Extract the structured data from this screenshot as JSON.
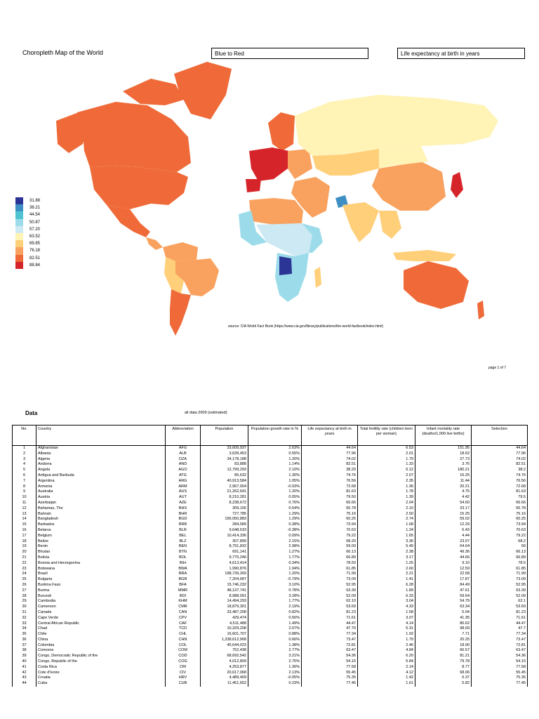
{
  "header": {
    "title": "Choropleth Map of the World",
    "scheme": "Blue to Red",
    "variable": "Life expectancy at birth in years"
  },
  "legend": {
    "labels": [
      "31.88",
      "38.21",
      "44.54",
      "50.87",
      "57.20",
      "63.52",
      "69.85",
      "76.18",
      "82.51",
      "88.84"
    ],
    "colors": [
      "#2b3596",
      "#3e8fc4",
      "#4fc4d0",
      "#9cdcea",
      "#cde9f4",
      "#fff3b6",
      "#ffcf7a",
      "#f9a15e",
      "#ef6a38",
      "#d6252a"
    ]
  },
  "source": "source:  CIA World Fact Book (https://www.cia.gov/library/publications/the-world-factbook/index.html)",
  "page_number": "page 1 of 7",
  "data_section": {
    "heading": "Data",
    "note": "all data 2009 (estimated)",
    "columns": [
      "No.",
      "Country",
      "Abbreviation",
      "Population",
      "Population growth rate in %",
      "Life expectancy at birth in years",
      "Total fertility rate (children born per woman)",
      "Infant mortality rate (deaths/1,000 live births)",
      "Selection"
    ],
    "rows": [
      [
        "1",
        "Afghanistan",
        "AFG",
        "33,609,937",
        "2.63%",
        "44.64",
        "6.53",
        "151.95",
        "44.64"
      ],
      [
        "2",
        "Albania",
        "ALB",
        "3,639,453",
        "0.55%",
        "77.96",
        "2.01",
        "18.62",
        "77.96"
      ],
      [
        "3",
        "Algeria",
        "DZA",
        "34,178,188",
        "1.20%",
        "74.02",
        "1.79",
        "27.73",
        "74.02"
      ],
      [
        "4",
        "Andorra",
        "AND",
        "83,888",
        "1.14%",
        "82.51",
        "1.33",
        "3.76",
        "82.51"
      ],
      [
        "5",
        "Angola",
        "AGO",
        "12,799,293",
        "2.10%",
        "38.20",
        "6.12",
        "180.21",
        "38.2"
      ],
      [
        "6",
        "Antigua and Barbuda",
        "ATG",
        "85,632",
        "1.30%",
        "74.76",
        "2.07",
        "16.25",
        "74.76"
      ],
      [
        "7",
        "Argentina",
        "ARG",
        "40,913,584",
        "1.05%",
        "76.56",
        "2.35",
        "11.44",
        "76.56"
      ],
      [
        "8",
        "Armenia",
        "ARM",
        "2,967,004",
        "-0.03%",
        "72.68",
        "1.36",
        "20.21",
        "72.68"
      ],
      [
        "9",
        "Australia",
        "AUS",
        "21,262,641",
        "1.20%",
        "81.63",
        "1.78",
        "4.75",
        "81.63"
      ],
      [
        "10",
        "Austria",
        "AUT",
        "8,210,281",
        "0.05%",
        "79.50",
        "1.39",
        "4.42",
        "79.5"
      ],
      [
        "11",
        "Azerbaijan",
        "AZE",
        "8,238,672",
        "0.76%",
        "66.66",
        "2.04",
        "54.60",
        "66.66"
      ],
      [
        "12",
        "Bahamas, The",
        "BHS",
        "309,156",
        "0.54%",
        "65.78",
        "2.10",
        "23.17",
        "65.78"
      ],
      [
        "13",
        "Bahrain",
        "BHR",
        "727,785",
        "1.29%",
        "75.16",
        "2.50",
        "15.25",
        "75.16"
      ],
      [
        "14",
        "Bangladesh",
        "BGD",
        "156,050,883",
        "1.29%",
        "60.25",
        "2.74",
        "59.02",
        "60.25"
      ],
      [
        "15",
        "Barbados",
        "BRB",
        "284,589",
        "0.38%",
        "73.94",
        "1.68",
        "12.29",
        "73.94"
      ],
      [
        "16",
        "Belarus",
        "BLR",
        "9,648,533",
        "-0.38%",
        "70.63",
        "1.24",
        "6.43",
        "70.63"
      ],
      [
        "17",
        "Belgium",
        "BEL",
        "10,414,336",
        "0.09%",
        "79.22",
        "1.65",
        "4.44",
        "79.22"
      ],
      [
        "18",
        "Belize",
        "BLZ",
        "307,899",
        "2.15%",
        "68.20",
        "3.36",
        "23.07",
        "68.2"
      ],
      [
        "19",
        "Benin",
        "BEN",
        "8,791,832",
        "2.98%",
        "59.00",
        "5.49",
        "64.64",
        "59"
      ],
      [
        "20",
        "Bhutan",
        "BTN",
        "691,141",
        "1.27%",
        "66.13",
        "2.38",
        "49.36",
        "66.13"
      ],
      [
        "21",
        "Bolivia",
        "BOL",
        "9,775,246",
        "1.77%",
        "66.89",
        "3.17",
        "44.66",
        "66.89"
      ],
      [
        "22",
        "Bosnia and Herzegovina",
        "BIH",
        "4,613,414",
        "0.34%",
        "78.50",
        "1.25",
        "9.10",
        "78.5"
      ],
      [
        "23",
        "Botswana",
        "BWA",
        "1,990,876",
        "1.94%",
        "61.85",
        "2.60",
        "12.59",
        "61.85"
      ],
      [
        "24",
        "Brazil",
        "BRA",
        "198,739,269",
        "1.20%",
        "71.99",
        "2.21",
        "22.58",
        "71.99"
      ],
      [
        "25",
        "Bulgaria",
        "BGR",
        "7,204,687",
        "-0.79%",
        "73.09",
        "1.41",
        "17.87",
        "73.09"
      ],
      [
        "26",
        "Burkina Faso",
        "BFA",
        "15,746,232",
        "3.10%",
        "52.95",
        "6.28",
        "84.49",
        "52.95"
      ],
      [
        "27",
        "Burma",
        "MMR",
        "48,137,741",
        "0.78%",
        "63.39",
        "1.89",
        "47.61",
        "63.39"
      ],
      [
        "28",
        "Burundi",
        "BDI",
        "8,988,091",
        "3.28%",
        "52.09",
        "6.33",
        "59.64",
        "52.09"
      ],
      [
        "29",
        "Cambodia",
        "KHM",
        "14,494,293",
        "1.77%",
        "62.10",
        "3.04",
        "54.79",
        "62.1"
      ],
      [
        "30",
        "Cameroon",
        "CMR",
        "18,879,301",
        "2.19%",
        "53.69",
        "4.33",
        "63.34",
        "53.69"
      ],
      [
        "31",
        "Canada",
        "CAN",
        "33,487,208",
        "0.82%",
        "81.23",
        "1.58",
        "5.04",
        "81.23"
      ],
      [
        "32",
        "Cape Verde",
        "CPV",
        "429,474",
        "0.56%",
        "71.61",
        "3.07",
        "41.35",
        "71.61"
      ],
      [
        "33",
        "Central African Republic",
        "CAF",
        "4,511,488",
        "1.49%",
        "44.47",
        "4.14",
        "80.62",
        "44.47"
      ],
      [
        "34",
        "Chad",
        "TCD",
        "10,329,208",
        "2.07%",
        "47.70",
        "5.31",
        "98.69",
        "47.7"
      ],
      [
        "35",
        "Chile",
        "CHL",
        "16,601,707",
        "0.88%",
        "77.34",
        "1.92",
        "7.71",
        "77.34"
      ],
      [
        "36",
        "China",
        "CHN",
        "1,338,612,968",
        "0.66%",
        "73.47",
        "1.79",
        "20.25",
        "73.47"
      ],
      [
        "37",
        "Colombia",
        "COL",
        "45,644,023",
        "1.38%",
        "72.81",
        "2.46",
        "18.90",
        "72.81"
      ],
      [
        "38",
        "Comoros",
        "COM",
        "752,438",
        "2.77%",
        "63.47",
        "4.84",
        "66.57",
        "63.47"
      ],
      [
        "39",
        "Congo, Democratic Republic of the",
        "COD",
        "68,692,542",
        "3.21%",
        "54.36",
        "6.20",
        "81.21",
        "54.36"
      ],
      [
        "40",
        "Congo, Republic of the",
        "COG",
        "4,012,809",
        "2.75%",
        "54.15",
        "5.84",
        "79.78",
        "54.15"
      ],
      [
        "41",
        "Costa Rica",
        "CRI",
        "4,253,877",
        "1.36%",
        "77.58",
        "2.14",
        "8.77",
        "77.58"
      ],
      [
        "42",
        "Cote d'Ivoire",
        "CIV",
        "20,617,068",
        "2.13%",
        "55.45",
        "4.12",
        "68.06",
        "55.45"
      ],
      [
        "43",
        "Croatia",
        "HRV",
        "4,489,409",
        "-0.05%",
        "75.35",
        "1.42",
        "6.37",
        "75.35"
      ],
      [
        "44",
        "Cuba",
        "CUB",
        "11,451,652",
        "0.23%",
        "77.45",
        "1.61",
        "5.82",
        "77.45"
      ]
    ]
  }
}
